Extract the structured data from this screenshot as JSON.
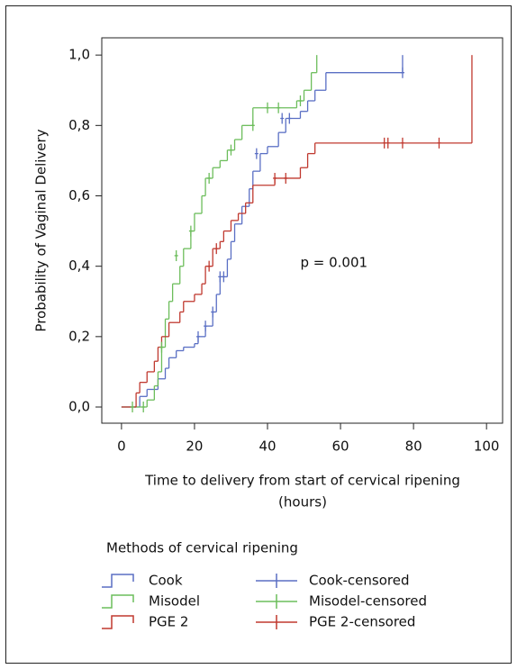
{
  "chart_data": {
    "type": "step",
    "y_label": "Probability of Vaginal Delivery",
    "x_label": [
      "Time to delivery from start of cervical ripening",
      "(hours)"
    ],
    "annotation": "p = 0.001",
    "legend_title": "Methods of cervical ripening",
    "xlim": [
      -5.4,
      104.4
    ],
    "ylim": [
      -0.046,
      1.049
    ],
    "xticks": [
      0,
      20,
      40,
      60,
      80,
      100
    ],
    "yticks": [
      {
        "value": 0,
        "label": "0,0"
      },
      {
        "value": 0.2,
        "label": "0,2"
      },
      {
        "value": 0.4,
        "label": "0,4"
      },
      {
        "value": 0.6,
        "label": "0,6"
      },
      {
        "value": 0.8,
        "label": "0,8"
      },
      {
        "value": 1,
        "label": "1,0"
      }
    ],
    "series": [
      {
        "name": "Cook",
        "color": "#5a6fc4",
        "style": "step",
        "x": [
          0,
          5,
          7,
          10,
          12,
          13,
          15,
          17,
          20,
          21,
          23,
          25,
          26,
          27,
          29,
          30,
          31,
          33,
          35,
          36,
          38,
          40,
          43,
          45,
          49,
          51,
          53,
          56,
          77
        ],
        "values": [
          0,
          0.03,
          0.05,
          0.08,
          0.11,
          0.14,
          0.16,
          0.17,
          0.18,
          0.2,
          0.23,
          0.27,
          0.32,
          0.37,
          0.42,
          0.47,
          0.52,
          0.57,
          0.62,
          0.67,
          0.72,
          0.74,
          0.78,
          0.82,
          0.84,
          0.87,
          0.9,
          0.95,
          1.0
        ]
      },
      {
        "name": "Misodel",
        "color": "#6cbd5b",
        "style": "step",
        "x": [
          0,
          7,
          9,
          10,
          11,
          12,
          13,
          14,
          16,
          17,
          19,
          20,
          22,
          23,
          25,
          27,
          29,
          31,
          33,
          36,
          48,
          50,
          52,
          53.5
        ],
        "values": [
          0,
          0.02,
          0.06,
          0.1,
          0.17,
          0.25,
          0.3,
          0.35,
          0.4,
          0.45,
          0.5,
          0.55,
          0.6,
          0.65,
          0.68,
          0.7,
          0.73,
          0.76,
          0.8,
          0.85,
          0.87,
          0.9,
          0.95,
          1.0
        ]
      },
      {
        "name": "PGE 2",
        "color": "#c0392f",
        "style": "step",
        "x": [
          0,
          4,
          5,
          7,
          9,
          10,
          11,
          13,
          16,
          17,
          20,
          22,
          23,
          25,
          27,
          28,
          30,
          32,
          34,
          36,
          42,
          49,
          51,
          53,
          96
        ],
        "values": [
          0,
          0.04,
          0.07,
          0.1,
          0.13,
          0.17,
          0.2,
          0.24,
          0.27,
          0.3,
          0.32,
          0.35,
          0.4,
          0.45,
          0.47,
          0.5,
          0.53,
          0.55,
          0.58,
          0.63,
          0.65,
          0.68,
          0.72,
          0.75,
          1.0
        ]
      },
      {
        "name": "Cook-censored",
        "color": "#5a6fc4",
        "style": "censor",
        "x": [
          21,
          23,
          25,
          27,
          28,
          37,
          44,
          46,
          77
        ],
        "values": [
          0.2,
          0.23,
          0.27,
          0.37,
          0.37,
          0.72,
          0.82,
          0.82,
          0.95
        ]
      },
      {
        "name": "Misodel-censored",
        "color": "#6cbd5b",
        "style": "censor",
        "x": [
          3,
          6,
          11,
          15,
          19,
          24,
          30,
          36,
          40,
          43,
          49
        ],
        "values": [
          0,
          0,
          0.17,
          0.43,
          0.5,
          0.65,
          0.73,
          0.8,
          0.85,
          0.85,
          0.87
        ]
      },
      {
        "name": "PGE 2-censored",
        "color": "#c0392f",
        "style": "censor",
        "x": [
          24,
          26,
          42,
          45,
          72,
          73,
          77,
          87
        ],
        "values": [
          0.4,
          0.45,
          0.65,
          0.65,
          0.75,
          0.75,
          0.75,
          0.75
        ]
      }
    ]
  }
}
